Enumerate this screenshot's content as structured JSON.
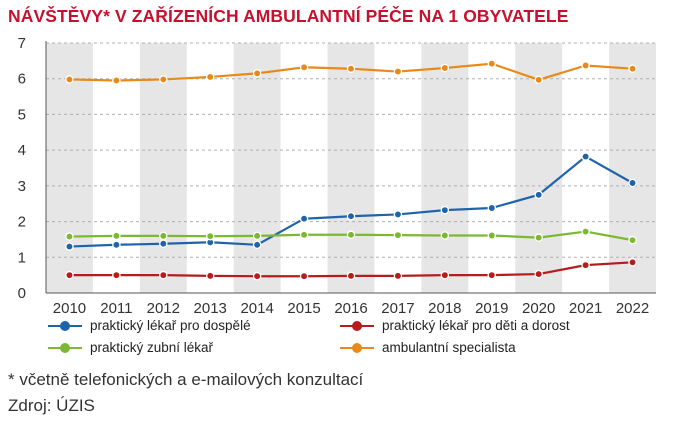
{
  "title": "NÁVŠTĚVY* V ZAŘÍZENÍCH AMBULANTNÍ PÉČE NA 1 OBYVATELE",
  "colors": {
    "title": "#c8102e",
    "band": "#e6e6e6",
    "axis": "#555555",
    "grid": "#b0b0b0"
  },
  "footnote": "* včetně telefonických a e-mailových konzultací",
  "source": "Zdroj: ÚZIS",
  "chart_data": {
    "type": "line",
    "title": "NÁVŠTĚVY* V ZAŘÍZENÍCH AMBULANTNÍ PÉČE NA 1 OBYVATELE",
    "xlabel": "",
    "ylabel": "",
    "ylim": [
      0,
      7
    ],
    "yticks": [
      0,
      1,
      2,
      3,
      4,
      5,
      6,
      7
    ],
    "categories": [
      "2010",
      "2011",
      "2012",
      "2013",
      "2014",
      "2015",
      "2016",
      "2017",
      "2018",
      "2019",
      "2020",
      "2021",
      "2022"
    ],
    "legend_position": "bottom",
    "series": [
      {
        "name": "praktický lékař pro dospělé",
        "color": "#1f64aa",
        "values": [
          1.3,
          1.35,
          1.38,
          1.42,
          1.35,
          2.08,
          2.15,
          2.2,
          2.32,
          2.38,
          2.75,
          3.82,
          3.08
        ]
      },
      {
        "name": "praktický lékař pro děti a dorost",
        "color": "#b71c1c",
        "values": [
          0.5,
          0.5,
          0.5,
          0.48,
          0.47,
          0.47,
          0.48,
          0.48,
          0.5,
          0.5,
          0.53,
          0.78,
          0.86
        ]
      },
      {
        "name": "praktický zubní lékař",
        "color": "#7cb832",
        "values": [
          1.58,
          1.6,
          1.6,
          1.59,
          1.6,
          1.63,
          1.63,
          1.62,
          1.61,
          1.61,
          1.55,
          1.72,
          1.48
        ]
      },
      {
        "name": "ambulantní specialista",
        "color": "#e88a1a",
        "values": [
          5.98,
          5.95,
          5.98,
          6.05,
          6.15,
          6.32,
          6.28,
          6.2,
          6.3,
          6.42,
          5.97,
          6.37,
          6.28
        ]
      }
    ]
  }
}
